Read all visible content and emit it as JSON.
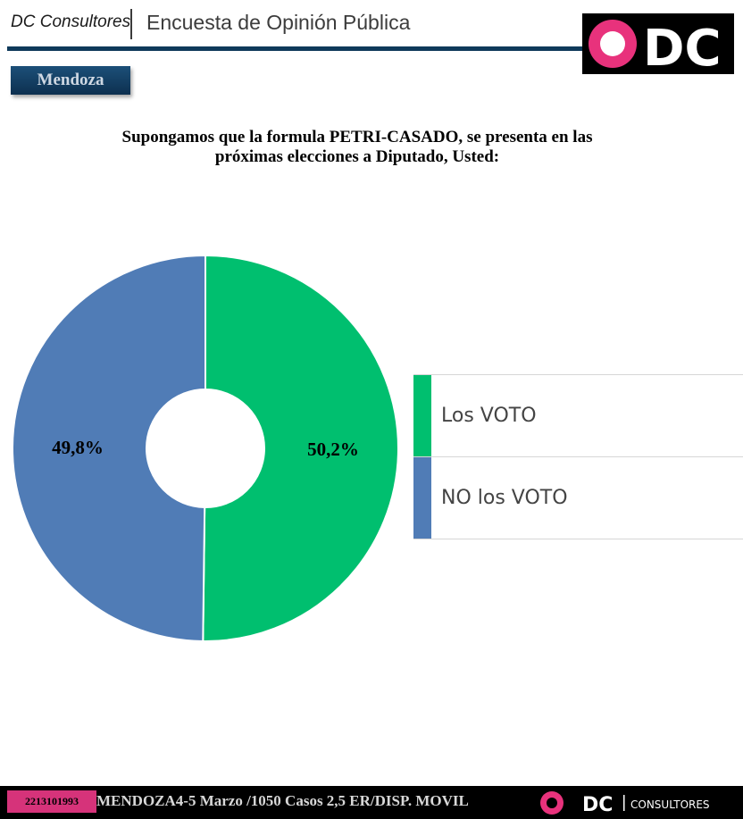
{
  "header": {
    "brand": "DC Consultores",
    "title": "Encuesta de Opinión Pública",
    "logo_text": "DC"
  },
  "region": "Mendoza",
  "chart_data": {
    "type": "pie",
    "title": "Supongamos que la formula PETRI-CASADO, se presenta en las próximas elecciones a Diputado, Usted:",
    "donut": true,
    "legend": "right",
    "slices": [
      {
        "name": "Los VOTO",
        "value": 50.2,
        "label": "50,2%",
        "color": "#00bf6f"
      },
      {
        "name": "NO los VOTO",
        "value": 49.8,
        "label": "49,8%",
        "color": "#507cb6"
      }
    ]
  },
  "footer": {
    "phone": "2213101993",
    "info": "MENDOZA4-5 Marzo /1050 Casos 2,5  ER/DISP. MOVIL",
    "logo_text": "DC",
    "logo_sub": "CONSULTORES"
  },
  "colors": {
    "navy": "#0f3a5a",
    "pink": "#d6337a"
  }
}
